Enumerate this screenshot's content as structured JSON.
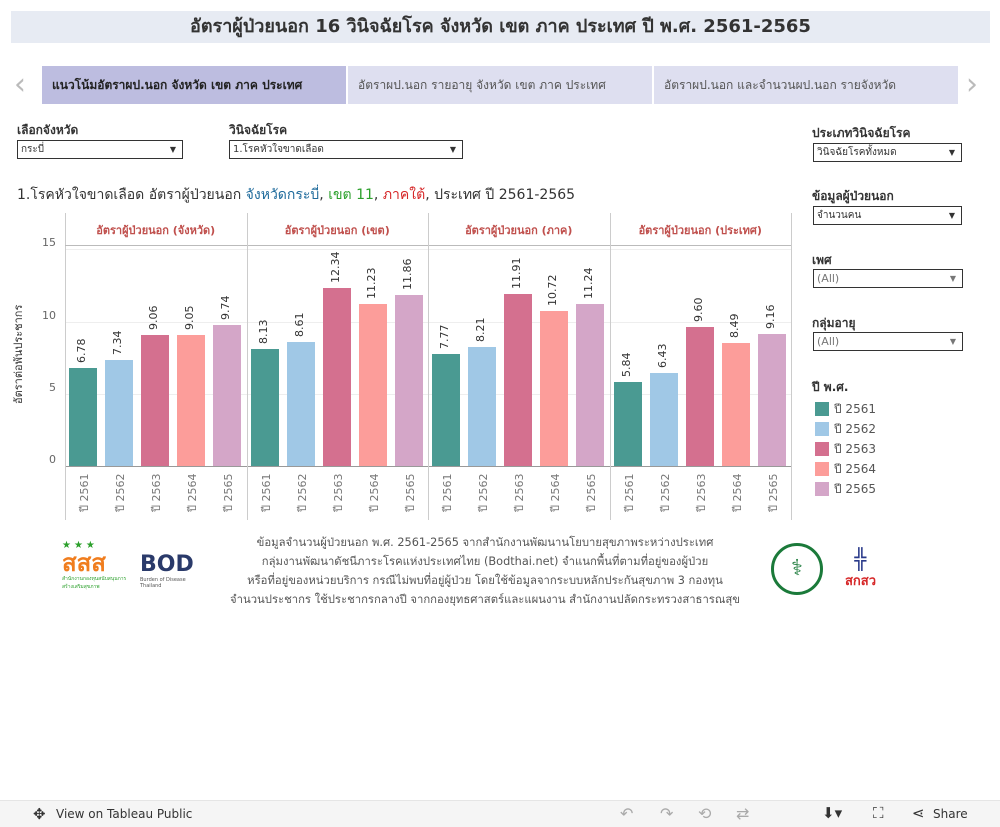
{
  "title": "อัตราผู้ป่วยนอก 16 วินิจฉัยโรค จังหวัด เขต ภาค ประเทศ ปี พ.ศ. 2561-2565",
  "tabs": [
    {
      "label": "แนวโน้มอัตราผป.นอก จังหวัด เขต ภาค ประเทศ",
      "active": true
    },
    {
      "label": "อัตราผป.นอก รายอายุ จังหวัด เขต ภาค ประเทศ",
      "active": false
    },
    {
      "label": "อัตราผป.นอก และจำนวนผป.นอก รายจังหวัด",
      "active": false
    }
  ],
  "filters": {
    "province": {
      "label": "เลือกจังหวัด",
      "value": "กระบี่"
    },
    "diagnosis": {
      "label": "วินิจฉัยโรค",
      "value": "1.โรคหัวใจขาดเลือด"
    },
    "diag_type": {
      "label": "ประเภทวินิจฉัยโรค",
      "value": "วินิจฉัยโรคทั้งหมด"
    },
    "opd_data": {
      "label": "ข้อมูลผู้ป่วยนอก",
      "value": "จำนวนคน"
    },
    "sex": {
      "label": "เพศ",
      "value": "(All)"
    },
    "age": {
      "label": "กลุ่มอายุ",
      "value": "(All)"
    }
  },
  "subtitle": {
    "prefix": "1.โรคหัวใจขาดเลือด อัตราผู้ป่วยนอก ",
    "province": "จังหวัดกระบี่",
    "sep1": ", ",
    "region": "เขต 11",
    "sep2": ", ",
    "area": "ภาคใต้",
    "suffix": ", ประเทศ ปี 2561-2565"
  },
  "subtitle_colors": {
    "province": "#1f6b9c",
    "region": "#2ca02c",
    "area": "#d62728"
  },
  "chart_data": {
    "type": "bar",
    "ylabel": "อัตราต่อพันประชากร",
    "ylim": [
      0,
      15.3
    ],
    "yticks": [
      0,
      5,
      10,
      15
    ],
    "categories": [
      "ปี 2561",
      "ปี 2562",
      "ปี 2563",
      "ปี 2564",
      "ปี 2565"
    ],
    "colors": [
      "#4a9a92",
      "#a0c8e6",
      "#d4708f",
      "#fc9d9a",
      "#d4a6c8"
    ],
    "panels": [
      {
        "title": "อัตราผู้ป่วยนอก (จังหวัด)",
        "values": [
          6.78,
          7.34,
          9.06,
          9.05,
          9.74
        ]
      },
      {
        "title": "อัตราผู้ป่วยนอก (เขต)",
        "values": [
          8.13,
          8.61,
          12.34,
          11.23,
          11.86
        ]
      },
      {
        "title": "อัตราผู้ป่วยนอก (ภาค)",
        "values": [
          7.77,
          8.21,
          11.91,
          10.72,
          11.24
        ]
      },
      {
        "title": "อัตราผู้ป่วยนอก (ประเทศ)",
        "values": [
          5.84,
          6.43,
          9.6,
          8.49,
          9.16
        ]
      }
    ]
  },
  "legend": {
    "title": "ปี พ.ศ.",
    "items": [
      "ปี 2561",
      "ปี 2562",
      "ปี 2563",
      "ปี 2564",
      "ปี 2565"
    ]
  },
  "footer": {
    "lines": [
      "ข้อมูลจำนวนผู้ป่วยนอก พ.ศ. 2561-2565 จากสำนักงานพัฒนานโยบายสุขภาพระหว่างประเทศ",
      "กลุ่มงานพัฒนาดัชนีภาระโรคแห่งประเทศไทย (Bodthai.net) จำแนกพื้นที่ตามที่อยู่ของผู้ป่วย",
      "หรือที่อยู่ของหน่วยบริการ กรณีไม่พบที่อยู่ผู้ป่วย โดยใช้ข้อมูลจากระบบหลักประกันสุขภาพ 3 กองทุน",
      "จำนวนประชากร ใช้ประชากรกลางปี จากกองยุทธศาสตร์และแผนงาน สำนักงานปลัดกระทรวงสาธารณสุข"
    ],
    "logos": {
      "thaihealth": "สสส",
      "bod": "BOD",
      "bod_sub": "Burden of Disease Thailand",
      "nhso": "สกสว"
    }
  },
  "toolbar": {
    "view_label": "View on Tableau Public",
    "share_label": "Share"
  }
}
